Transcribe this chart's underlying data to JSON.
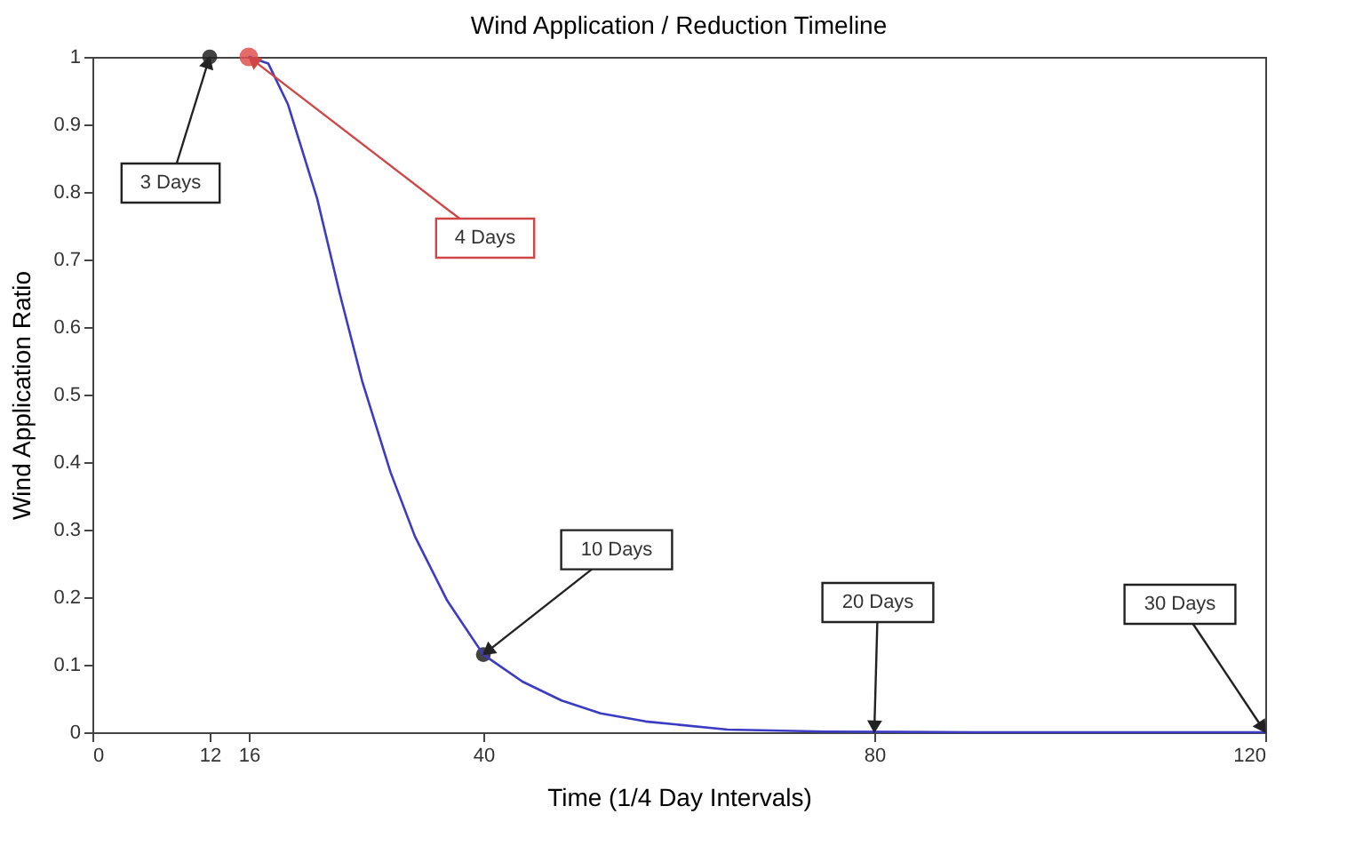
{
  "chart_data": {
    "type": "line",
    "title": "Wind Application / Reduction Timeline",
    "xlabel": "Time (1/4 Day Intervals)",
    "ylabel": "Wind Application Ratio",
    "xlim": [
      0,
      120
    ],
    "xticks": [
      0,
      12,
      16,
      40,
      80,
      120
    ],
    "ylim": [
      0,
      1
    ],
    "yticks": [
      0,
      0.1,
      0.2,
      0.3,
      0.4,
      0.5,
      0.6,
      0.7,
      0.8,
      0.9,
      1
    ],
    "grid": false,
    "legend": false,
    "series": [
      {
        "type": "line",
        "color": "#3b3bc4",
        "x": [
          16,
          18,
          20,
          23,
          25.3,
          27.6,
          30.5,
          33,
          36.3,
          40,
          44,
          48,
          52,
          56.6,
          65,
          75,
          90,
          120
        ],
        "values": [
          1,
          0.99,
          0.93,
          0.79,
          0.65,
          0.52,
          0.385,
          0.29,
          0.195,
          0.115,
          0.075,
          0.047,
          0.028,
          0.016,
          0.004,
          0.001,
          0,
          0
        ]
      },
      {
        "type": "scatter",
        "marker": "circle",
        "x": [
          12,
          16,
          40
        ],
        "values": [
          1,
          1,
          0.115
        ],
        "colors": [
          "#222222",
          "#e05050",
          "#222222"
        ]
      }
    ],
    "annotations": [
      {
        "text": "3 Days",
        "x": 12,
        "y": 1
      },
      {
        "text": "4 Days",
        "x": 16,
        "y": 1
      },
      {
        "text": "10 Days",
        "x": 40,
        "y": 0.115
      },
      {
        "text": "20 Days",
        "x": 80,
        "y": 0
      },
      {
        "text": "30 Days",
        "x": 120,
        "y": 0
      }
    ]
  }
}
